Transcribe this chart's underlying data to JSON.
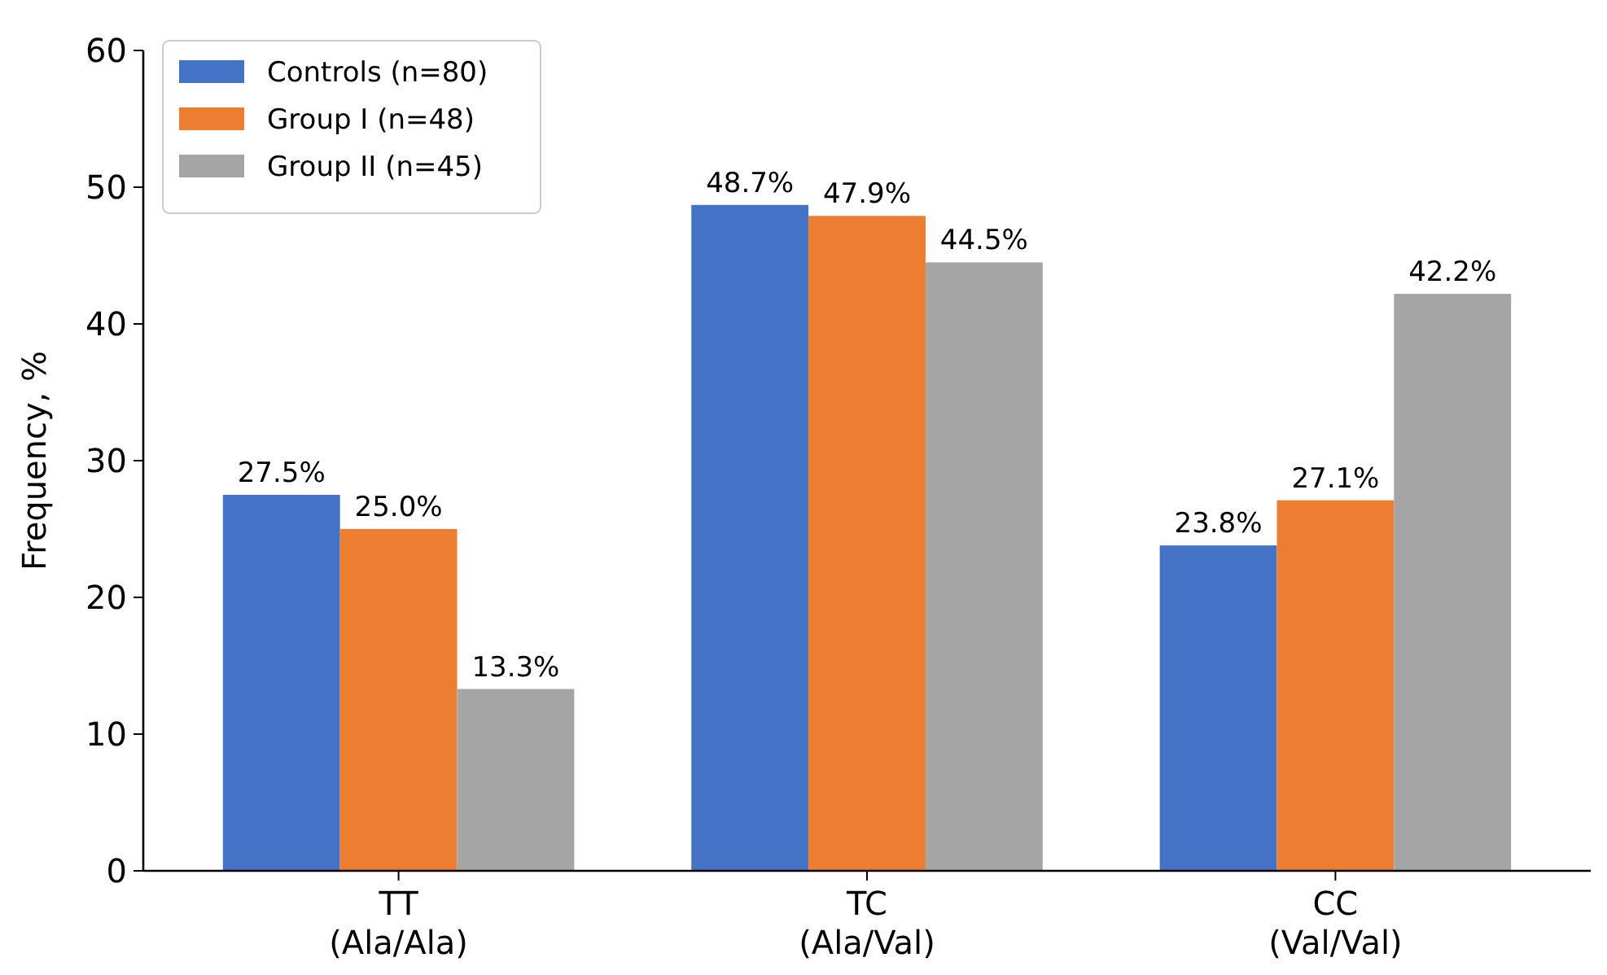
{
  "chart_data": {
    "type": "bar",
    "ylabel": "Frequency, %",
    "categories": [
      "TT\n(Ala/Ala)",
      "TC\n(Ala/Val)",
      "CC\n(Val/Val)"
    ],
    "series": [
      {
        "name": "Controls (n=80)",
        "color": "#4472c4",
        "values": [
          27.5,
          48.7,
          23.8
        ],
        "value_labels": [
          "27.5%",
          "48.7%",
          "23.8%"
        ]
      },
      {
        "name": "Group I (n=48)",
        "color": "#ed7d31",
        "values": [
          25.0,
          47.9,
          27.1
        ],
        "value_labels": [
          "25.0%",
          "47.9%",
          "27.1%"
        ]
      },
      {
        "name": "Group II (n=45)",
        "color": "#a5a5a5",
        "values": [
          13.3,
          44.5,
          42.2
        ],
        "value_labels": [
          "13.3%",
          "44.5%",
          "42.2%"
        ]
      }
    ],
    "ylim": [
      0,
      60
    ],
    "yticks": [
      0,
      10,
      20,
      30,
      40,
      50,
      60
    ],
    "grid": false,
    "legend": "top left"
  }
}
